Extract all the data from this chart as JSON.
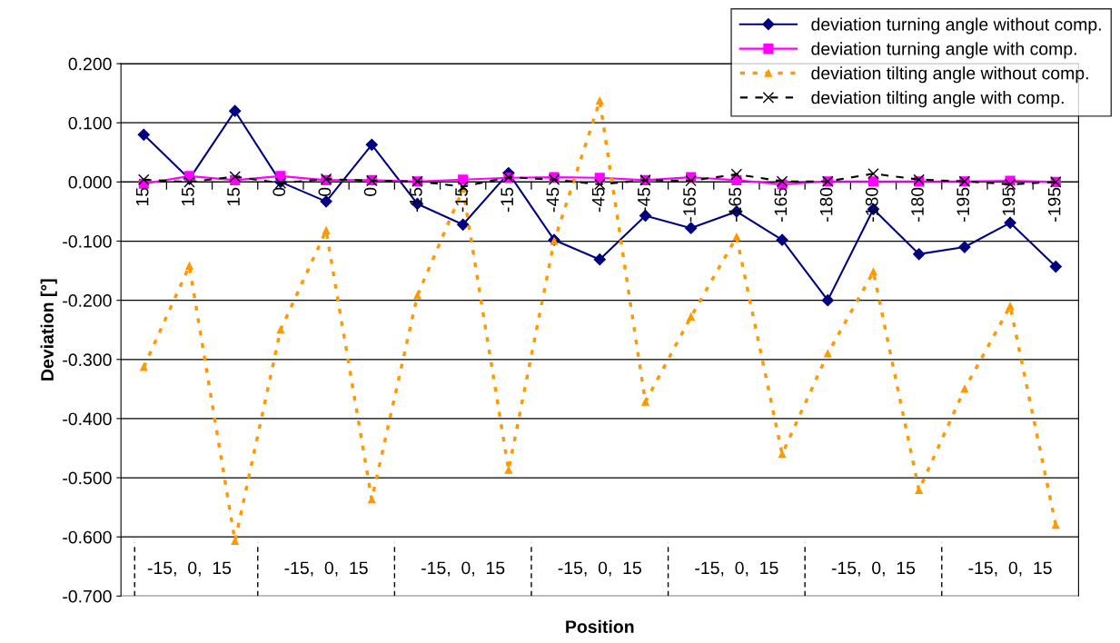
{
  "chart_data": {
    "type": "line",
    "xlabel": "Position",
    "ylabel": "Deviation [°]",
    "categories": [
      "15",
      "15",
      "15",
      "0",
      "0",
      "0",
      "-15",
      "-15",
      "-15",
      "-45",
      "-45",
      "-45",
      "-165",
      "-165",
      "-165",
      "-180",
      "-180",
      "-180",
      "-195",
      "-195",
      "-195"
    ],
    "series": [
      {
        "name": "deviation turning angle without comp.",
        "color": "#000080",
        "marker": "diamond",
        "line_style": "solid",
        "values": [
          0.08,
          0.005,
          0.12,
          0.0,
          -0.033,
          0.063,
          -0.037,
          -0.072,
          0.015,
          -0.098,
          -0.131,
          -0.057,
          -0.078,
          -0.05,
          -0.098,
          -0.2,
          -0.046,
          -0.122,
          -0.11,
          -0.069,
          -0.143
        ]
      },
      {
        "name": "deviation turning angle with comp.",
        "color": "#ff00ff",
        "marker": "square",
        "line_style": "solid",
        "values": [
          -0.003,
          0.01,
          0.003,
          0.01,
          0.003,
          0.003,
          0.001,
          0.004,
          0.007,
          0.008,
          0.007,
          0.003,
          0.008,
          0.003,
          -0.004,
          0.001,
          0.001,
          0.001,
          0.001,
          0.002,
          0.0
        ]
      },
      {
        "name": "deviation tilting angle without comp.",
        "color": "#ff9900",
        "marker": "triangle",
        "line_style": "dotted",
        "values": [
          -0.313,
          -0.142,
          -0.607,
          -0.25,
          -0.082,
          -0.537,
          -0.192,
          -0.012,
          -0.487,
          -0.1,
          0.137,
          -0.372,
          -0.228,
          -0.093,
          -0.46,
          -0.29,
          -0.152,
          -0.521,
          -0.35,
          -0.21,
          -0.58
        ]
      },
      {
        "name": "deviation tilting angle with comp.",
        "color": "#000000",
        "marker": "cross",
        "line_style": "dashed",
        "values": [
          0.004,
          0.0,
          0.009,
          -0.002,
          0.005,
          0.002,
          0.001,
          -0.008,
          0.008,
          0.004,
          -0.004,
          0.003,
          0.002,
          0.013,
          0.001,
          0.001,
          0.014,
          0.004,
          0.001,
          -0.004,
          0.0
        ]
      }
    ],
    "ylim": [
      -0.7,
      0.2
    ],
    "yticks": [
      {
        "value": -0.7,
        "label": "-0.700"
      },
      {
        "value": -0.6,
        "label": "-0.600"
      },
      {
        "value": -0.5,
        "label": "-0.500"
      },
      {
        "value": -0.4,
        "label": "-0.400"
      },
      {
        "value": -0.3,
        "label": "-0.300"
      },
      {
        "value": -0.2,
        "label": "-0.200"
      },
      {
        "value": -0.1,
        "label": "-0.100"
      },
      {
        "value": 0,
        "label": "0.000"
      },
      {
        "value": 0.1,
        "label": "0.100"
      },
      {
        "value": 0.2,
        "label": "0.200"
      }
    ],
    "grid": "y",
    "legend": "top right",
    "annotations": [
      "-15,  0,  15",
      "-15,  0,  15",
      "-15,  0,  15",
      "-15,  0,  15",
      "-15,  0,  15",
      "-15,  0,  15",
      "-15,  0,  15"
    ]
  }
}
